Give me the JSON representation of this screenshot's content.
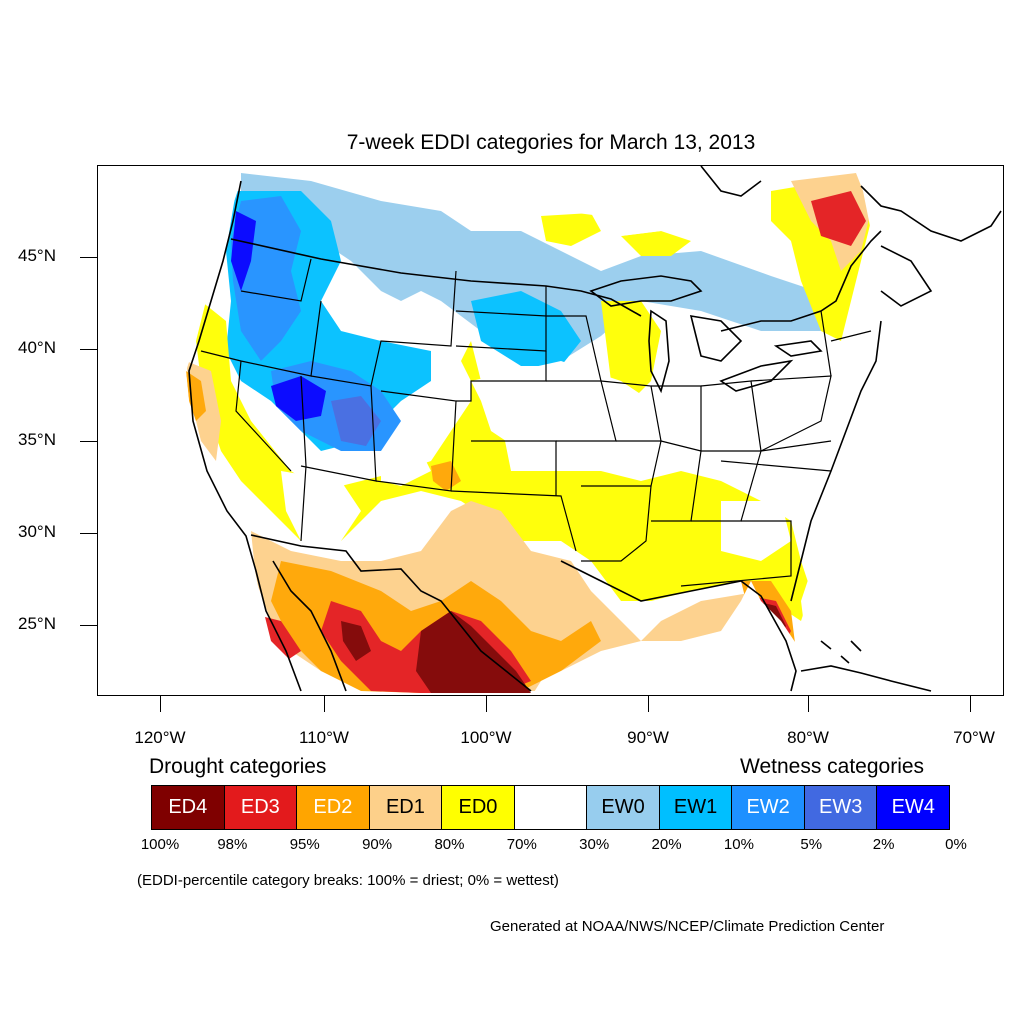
{
  "title": "7-week EDDI categories for March 13, 2013",
  "lat_labels": [
    "45°N",
    "40°N",
    "35°N",
    "30°N",
    "25°N"
  ],
  "lon_labels": [
    "120°W",
    "110°W",
    "100°W",
    "90°W",
    "80°W",
    "70°W"
  ],
  "legend": {
    "drought_heading": "Drought categories",
    "wetness_heading": "Wetness categories",
    "categories": [
      {
        "label": "ED4",
        "color": "#7f0000"
      },
      {
        "label": "ED3",
        "color": "#e31a1c"
      },
      {
        "label": "ED2",
        "color": "#ffa500"
      },
      {
        "label": "ED1",
        "color": "#fdd08a"
      },
      {
        "label": "ED0",
        "color": "#ffff00"
      },
      {
        "label": "",
        "color": "#ffffff"
      },
      {
        "label": "EW0",
        "color": "#97cdee"
      },
      {
        "label": "EW1",
        "color": "#00bfff"
      },
      {
        "label": "EW2",
        "color": "#1e90ff"
      },
      {
        "label": "EW3",
        "color": "#4169e1"
      },
      {
        "label": "EW4",
        "color": "#0000ff"
      }
    ],
    "breaks": [
      "100%",
      "98%",
      "95%",
      "90%",
      "80%",
      "70%",
      "30%",
      "20%",
      "10%",
      "5%",
      "2%",
      "0%"
    ]
  },
  "note": "(EDDI-percentile category breaks: 100% = driest; 0% = wettest)",
  "credit": "Generated at NOAA/NWS/NCEP/Climate Prediction Center"
}
